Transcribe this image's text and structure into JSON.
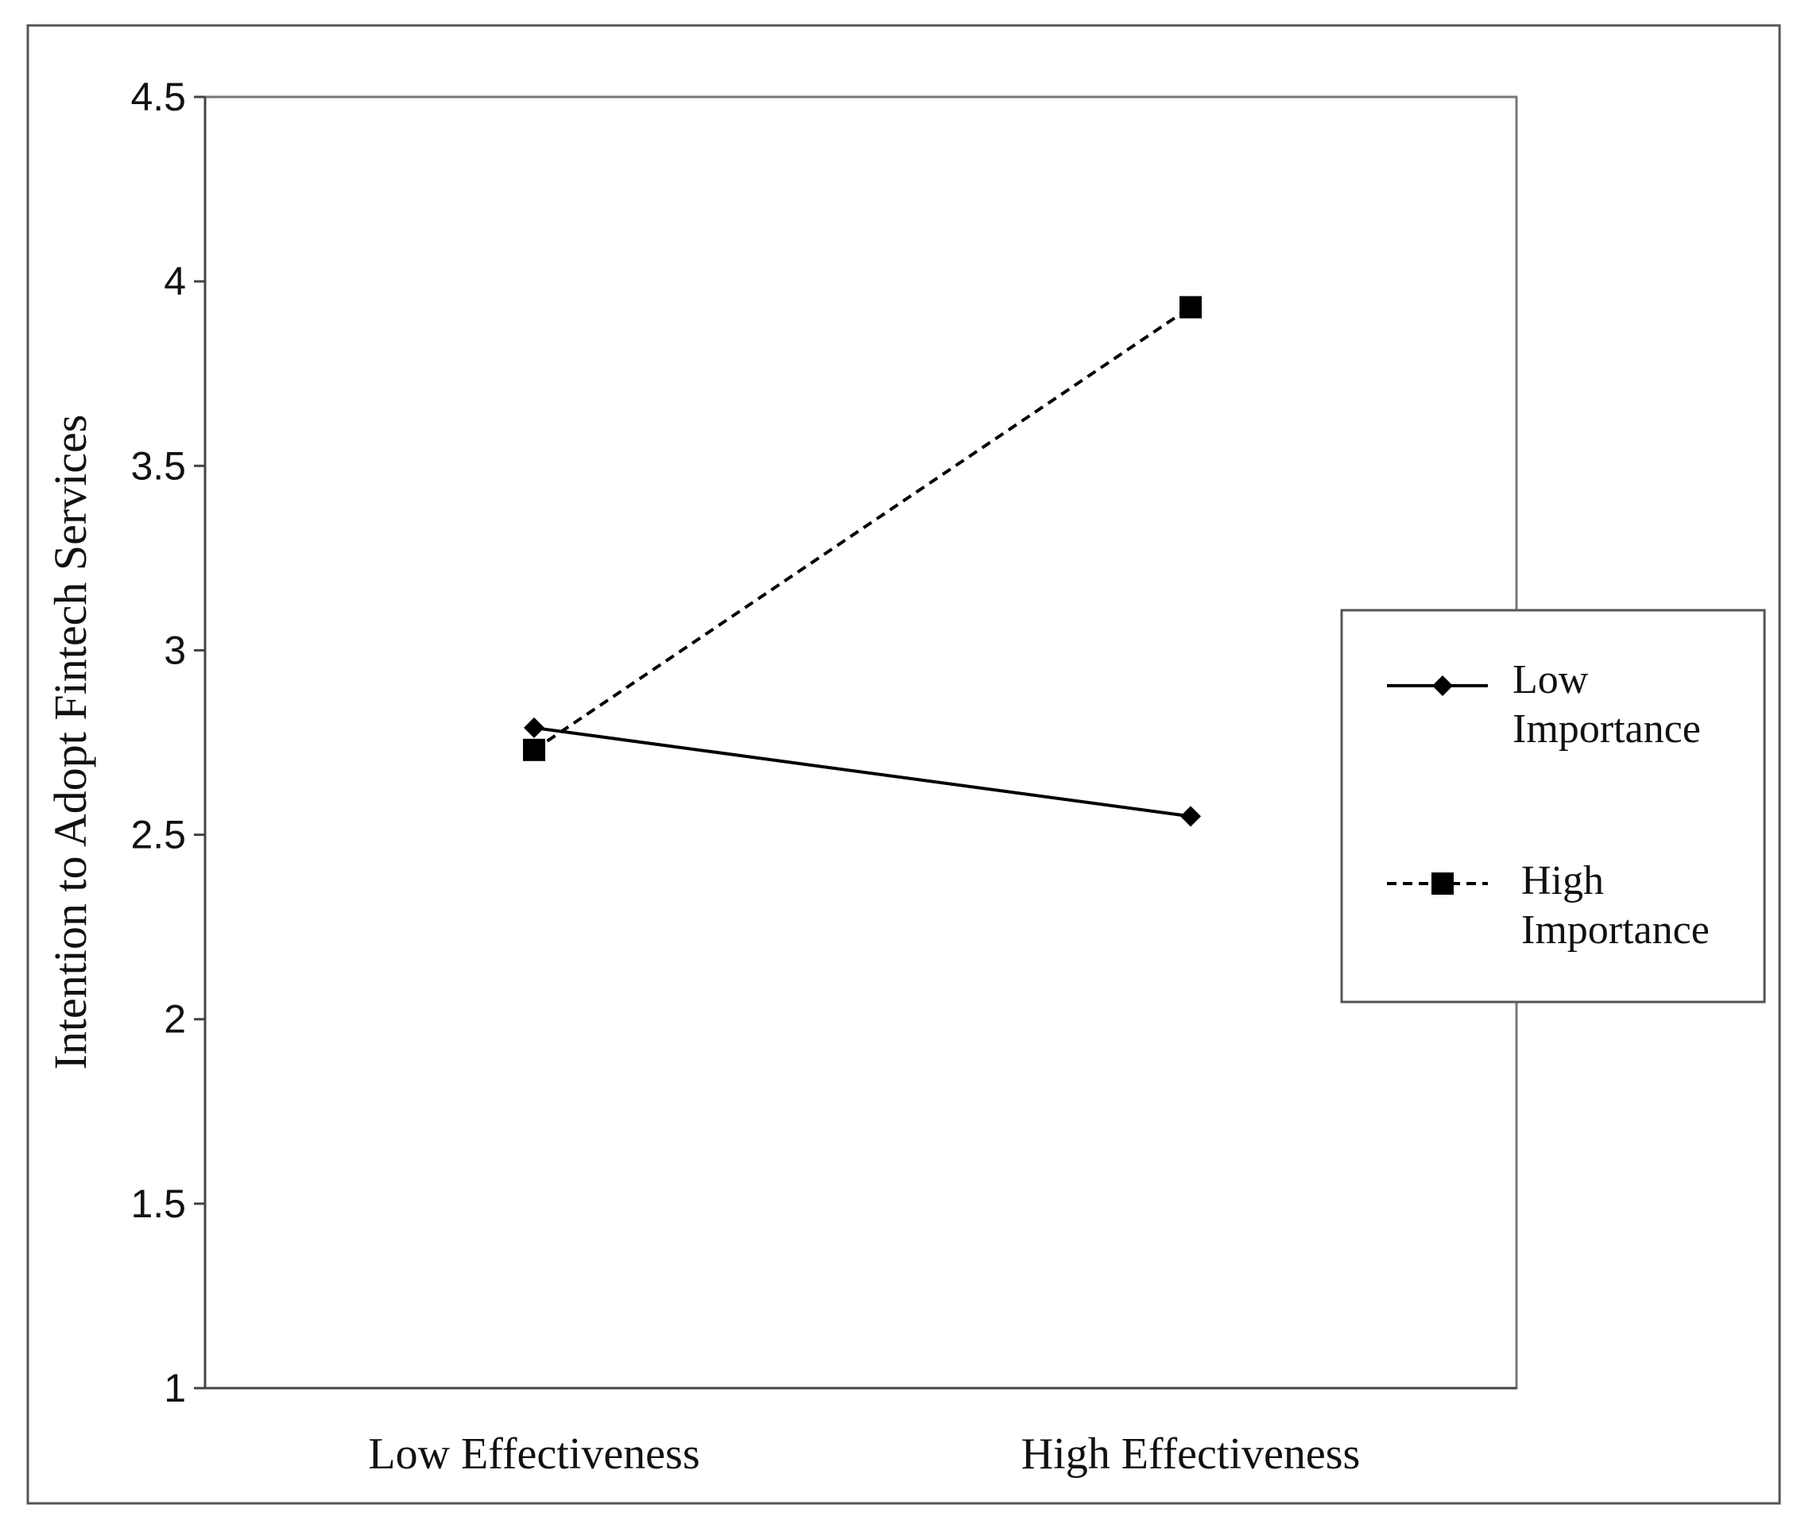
{
  "chart_data": {
    "type": "line",
    "title": "",
    "xlabel": "",
    "ylabel": "Intention to Adopt Fintech Services",
    "categories": [
      "Low Effectiveness",
      "High Effectiveness"
    ],
    "yticks": [
      "1",
      "1.5",
      "2",
      "2.5",
      "3",
      "3.5",
      "4",
      "4.5"
    ],
    "ylim": [
      1,
      4.5
    ],
    "grid": false,
    "legend_position": "right",
    "series": [
      {
        "name": "Low Importance",
        "legend_lines": [
          "Low",
          "Importance"
        ],
        "values": [
          2.79,
          2.55
        ],
        "line_style": "solid",
        "marker": "diamond",
        "color": "#000000"
      },
      {
        "name": "High Importance",
        "legend_lines": [
          "High",
          "Importance"
        ],
        "values": [
          2.73,
          3.93
        ],
        "line_style": "dashed",
        "marker": "square",
        "color": "#000000"
      }
    ]
  }
}
